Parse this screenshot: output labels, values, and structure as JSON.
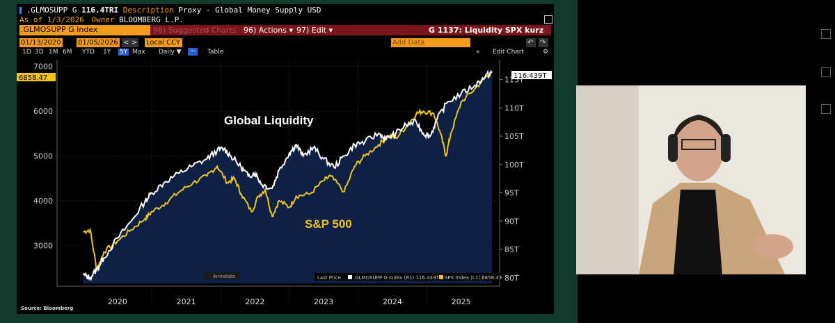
{
  "terminal": {
    "ticker": ".GLMOSUPP G",
    "last_value": "116.4TRI",
    "description_label": "Description",
    "description": "Proxy - Global Money Supply USD",
    "as_of": "As of 1/3/2026",
    "owner_label": "Owner",
    "owner": "BLOOMBERG L.P.",
    "security": ".GLMOSUPP G Index",
    "menu": {
      "suggested": "98) Suggested Charts",
      "actions": "96) Actions ▾",
      "edit": "97) Edit ▾",
      "chart_id": "G 1137: Liquidity SPX kurz"
    },
    "date_start": "01/13/2020",
    "date_end": "01/05/2026",
    "currency": "Local CCY",
    "ranges": [
      "1D",
      "3D",
      "1M",
      "6M",
      "YTD",
      "1Y",
      "5Y",
      "Max"
    ],
    "selected_range": "5Y",
    "frequency": "Daily ▼",
    "table_label": "Table",
    "add_data": "Add Data",
    "edit_chart": "Edit Chart",
    "source": "Source: Bloomberg",
    "annotate": "Annotate",
    "last_price_label": "Last Price",
    "legend_glmo": ".GLMOSUPP G Index  (R1) 116.439T",
    "legend_spx": "SPX Index  (L1) 6858.47",
    "label_liquidity": "Global Liquidity",
    "label_sp500": "S&P 500",
    "badge_left": "6858.47",
    "badge_right": "116.439T"
  },
  "colors": {
    "liquidity": "#ffffff",
    "sp500": "#f0c419",
    "fill": "#0d2045",
    "menu_bar": "#7a1619",
    "accent": "#f39c1b"
  },
  "chart_data": {
    "type": "line",
    "x_years": [
      "2020",
      "2021",
      "2022",
      "2023",
      "2024",
      "2025"
    ],
    "left_axis": {
      "ticks": [
        3000,
        4000,
        5000,
        6000,
        7000
      ],
      "range": [
        2150,
        7150
      ]
    },
    "right_axis": {
      "ticks": [
        "80T",
        "85T",
        "90T",
        "95T",
        "100T",
        "105T",
        "110T",
        "115T"
      ],
      "range": [
        79,
        118.5
      ]
    },
    "series": [
      {
        "name": "SPX Index",
        "axis": "left",
        "points": [
          [
            2020.0,
            3300
          ],
          [
            2020.1,
            3350
          ],
          [
            2020.2,
            2450
          ],
          [
            2020.3,
            2850
          ],
          [
            2020.5,
            3100
          ],
          [
            2020.7,
            3350
          ],
          [
            2020.9,
            3600
          ],
          [
            2021.0,
            3750
          ],
          [
            2021.2,
            3950
          ],
          [
            2021.4,
            4200
          ],
          [
            2021.6,
            4400
          ],
          [
            2021.8,
            4550
          ],
          [
            2021.95,
            4770
          ],
          [
            2022.1,
            4400
          ],
          [
            2022.2,
            4500
          ],
          [
            2022.3,
            4150
          ],
          [
            2022.45,
            3750
          ],
          [
            2022.55,
            4100
          ],
          [
            2022.65,
            4250
          ],
          [
            2022.75,
            3650
          ],
          [
            2022.85,
            4000
          ],
          [
            2023.0,
            3850
          ],
          [
            2023.1,
            4100
          ],
          [
            2023.3,
            4150
          ],
          [
            2023.5,
            4450
          ],
          [
            2023.6,
            4550
          ],
          [
            2023.8,
            4200
          ],
          [
            2023.95,
            4770
          ],
          [
            2024.1,
            5000
          ],
          [
            2024.3,
            5250
          ],
          [
            2024.45,
            5450
          ],
          [
            2024.55,
            5400
          ],
          [
            2024.7,
            5650
          ],
          [
            2024.85,
            5950
          ],
          [
            2024.95,
            6000
          ],
          [
            2025.1,
            5950
          ],
          [
            2025.2,
            5500
          ],
          [
            2025.28,
            5000
          ],
          [
            2025.35,
            5500
          ],
          [
            2025.5,
            6200
          ],
          [
            2025.7,
            6500
          ],
          [
            2025.85,
            6750
          ],
          [
            2025.95,
            6858
          ]
        ]
      },
      {
        "name": ".GLMOSUPP G Index",
        "axis": "right",
        "points": [
          [
            2020.0,
            80.5
          ],
          [
            2020.1,
            80.0
          ],
          [
            2020.2,
            81.5
          ],
          [
            2020.3,
            83.5
          ],
          [
            2020.5,
            87.0
          ],
          [
            2020.7,
            90.0
          ],
          [
            2020.9,
            93.5
          ],
          [
            2021.0,
            95.0
          ],
          [
            2021.2,
            97.0
          ],
          [
            2021.4,
            98.5
          ],
          [
            2021.6,
            99.8
          ],
          [
            2021.8,
            101.0
          ],
          [
            2021.95,
            102.5
          ],
          [
            2022.05,
            102.8
          ],
          [
            2022.15,
            101.5
          ],
          [
            2022.3,
            99.5
          ],
          [
            2022.4,
            98.0
          ],
          [
            2022.5,
            98.5
          ],
          [
            2022.6,
            96.5
          ],
          [
            2022.75,
            95.8
          ],
          [
            2022.85,
            99.0
          ],
          [
            2023.0,
            102.0
          ],
          [
            2023.1,
            103.5
          ],
          [
            2023.2,
            101.5
          ],
          [
            2023.35,
            103.0
          ],
          [
            2023.5,
            101.0
          ],
          [
            2023.65,
            99.5
          ],
          [
            2023.8,
            101.5
          ],
          [
            2023.95,
            103.5
          ],
          [
            2024.1,
            104.0
          ],
          [
            2024.3,
            105.5
          ],
          [
            2024.4,
            104.5
          ],
          [
            2024.55,
            105.5
          ],
          [
            2024.7,
            107.0
          ],
          [
            2024.85,
            107.5
          ],
          [
            2024.95,
            105.5
          ],
          [
            2025.05,
            105.0
          ],
          [
            2025.15,
            108.0
          ],
          [
            2025.3,
            111.0
          ],
          [
            2025.5,
            112.5
          ],
          [
            2025.7,
            114.0
          ],
          [
            2025.85,
            115.5
          ],
          [
            2025.95,
            116.4
          ]
        ]
      }
    ]
  }
}
